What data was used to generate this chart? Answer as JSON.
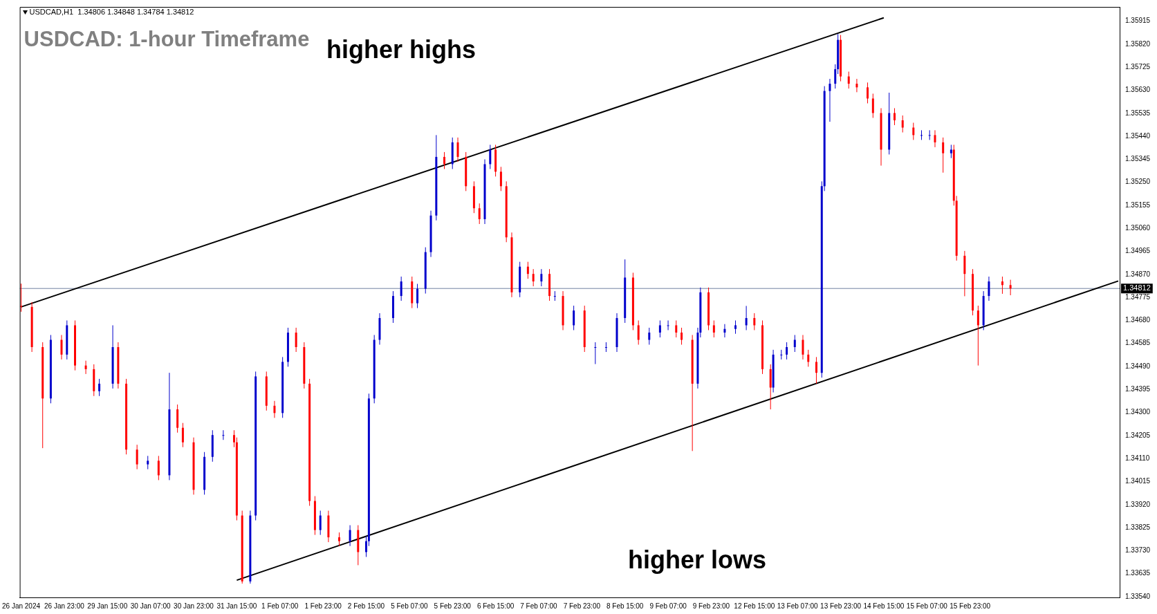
{
  "chart_data": {
    "type": "candlestick",
    "title": "USDCAD: 1-hour Timeframe",
    "annotations": [
      "USDCAD,H1  1.34806 1.34848 1.34784 1.34812",
      "higher highs",
      "higher lows"
    ],
    "categories": [
      "26 Jan 2024",
      null,
      null,
      null,
      null,
      null,
      null,
      null,
      null,
      null,
      null,
      null,
      null,
      null,
      null,
      null,
      "26 Jan 23:00",
      null,
      null,
      null,
      null,
      null,
      null,
      null,
      null,
      null,
      null,
      null,
      null,
      null,
      null,
      null,
      "29 Jan 15:00",
      null,
      null,
      null,
      null,
      null,
      null,
      null,
      null,
      null,
      null,
      null,
      null,
      null,
      null,
      null,
      "30 Jan 07:00",
      null,
      null,
      null,
      null,
      null,
      null,
      null,
      null,
      null,
      null,
      null,
      null,
      null,
      null,
      null,
      "30 Jan 23:00",
      null,
      null,
      null,
      null,
      null,
      null,
      null,
      null,
      null,
      null,
      null,
      null,
      null,
      null,
      null,
      "31 Jan 15:00",
      null,
      null,
      null,
      null,
      null,
      null,
      null,
      null,
      null,
      null,
      null,
      null,
      null,
      null,
      null,
      "1 Feb 07:00",
      null,
      null,
      null,
      null,
      null,
      null,
      null,
      null,
      null,
      null,
      null,
      null,
      null,
      null,
      null,
      "1 Feb 23:00",
      null,
      null,
      null,
      null,
      null,
      null,
      null,
      null,
      null,
      null,
      null,
      null,
      null,
      null,
      null,
      "2 Feb 15:00",
      null,
      null,
      null,
      null,
      null,
      null,
      null,
      null,
      null,
      null,
      null,
      null,
      null,
      null,
      null,
      "5 Feb 07:00",
      null,
      null,
      null,
      null,
      null,
      null,
      null,
      null,
      null,
      null,
      null,
      null,
      null,
      null,
      null,
      "5 Feb 23:00",
      null,
      null,
      null,
      null,
      null,
      null,
      null,
      null,
      null,
      null,
      null,
      null,
      null,
      null,
      null,
      "6 Feb 15:00",
      null,
      null,
      null,
      null,
      null,
      null,
      null,
      null,
      null,
      null,
      null,
      null,
      null,
      null,
      null,
      "7 Feb 07:00",
      null,
      null,
      null,
      null,
      null,
      null,
      null,
      null,
      null,
      null,
      null,
      null,
      null,
      null,
      null,
      "7 Feb 23:00",
      null,
      null,
      null,
      null,
      null,
      null,
      null,
      null,
      null,
      null,
      null,
      null,
      null,
      null,
      null,
      "8 Feb 15:00",
      null,
      null,
      null,
      null,
      null,
      null,
      null,
      null,
      null,
      null,
      null,
      null,
      null,
      null,
      null,
      "9 Feb 07:00",
      null,
      null,
      null,
      null,
      null,
      null,
      null,
      null,
      null,
      null,
      null,
      null,
      null,
      null,
      null,
      "9 Feb 23:00",
      null,
      null,
      null,
      null,
      null,
      null,
      null,
      null,
      null,
      null,
      null,
      null,
      null,
      null,
      null,
      "12 Feb 15:00",
      null,
      null,
      null,
      null,
      null,
      null,
      null,
      null,
      null,
      null,
      null,
      null,
      null,
      null,
      null,
      "13 Feb 07:00",
      null,
      null,
      null,
      null,
      null,
      null,
      null,
      null,
      null,
      null,
      null,
      null,
      null,
      null,
      null,
      "13 Feb 23:00",
      null,
      null,
      null,
      null,
      null,
      null,
      null,
      null,
      null,
      null,
      null,
      null,
      null,
      null,
      null,
      "14 Feb 15:00",
      null,
      null,
      null,
      null,
      null,
      null,
      null,
      null,
      null,
      null,
      null,
      null,
      null,
      null,
      null,
      "15 Feb 07:00",
      null,
      null,
      null,
      null,
      null,
      null,
      null,
      null,
      null,
      null,
      null,
      null,
      null,
      null,
      null,
      "15 Feb 23:00",
      null,
      null,
      null,
      null,
      null,
      null,
      null,
      null,
      null,
      null,
      null,
      null,
      null,
      null,
      null,
      null,
      null,
      null,
      null,
      null,
      null,
      null,
      null,
      null,
      null,
      null,
      null,
      null,
      null,
      null,
      null,
      null,
      null,
      null,
      null,
      null,
      null,
      null,
      null,
      null,
      null,
      null,
      null,
      null,
      null,
      null,
      null,
      null,
      null,
      null,
      null,
      null,
      null,
      null,
      null
    ],
    "ylim": [
      1.33537,
      1.35974
    ],
    "yticks": [
      {
        "value": 1.3354,
        "label": "1.33540"
      },
      1.33635,
      {
        "value": 1.3373,
        "label": "1.33730"
      },
      1.33825,
      {
        "value": 1.3392,
        "label": "1.33920"
      },
      1.34015,
      {
        "value": 1.3411,
        "label": "1.34110"
      },
      1.34205,
      {
        "value": 1.343,
        "label": "1.34300"
      },
      1.34395,
      {
        "value": 1.3449,
        "label": "1.34490"
      },
      1.34585,
      {
        "value": 1.3468,
        "label": "1.34680"
      },
      1.34775,
      {
        "value": 1.3487,
        "label": "1.34870"
      },
      1.34965,
      {
        "value": 1.3506,
        "label": "1.35060"
      },
      1.35155,
      {
        "value": 1.3525,
        "label": "1.35250"
      },
      1.35345,
      {
        "value": 1.3544,
        "label": "1.35440"
      },
      1.35535,
      {
        "value": 1.3563,
        "label": "1.35630"
      },
      1.35725,
      {
        "value": 1.3582,
        "label": "1.35820"
      },
      1.35915
    ],
    "grid": false,
    "legend": false,
    "ref_lines": [
      {
        "axis": "y",
        "value": 1.34812,
        "label": "1.34812",
        "color": "#7080a0"
      }
    ],
    "ohlc": [
      [
        1.3474,
        1.34832,
        1.34716,
        1.34736
      ],
      null,
      null,
      null,
      [
        1.34736,
        1.34756,
        1.3455,
        1.3457
      ],
      null,
      null,
      null,
      [
        1.3457,
        1.3459,
        1.34153,
        1.34358
      ],
      null,
      null,
      [
        1.34358,
        1.3462,
        1.34338,
        1.346
      ],
      null,
      null,
      null,
      [
        1.346,
        1.3462,
        1.34519,
        1.34539
      ],
      null,
      [
        1.34539,
        1.3468,
        1.34519,
        1.3466
      ],
      null,
      null,
      [
        1.3466,
        1.3468,
        1.34474,
        1.34494
      ],
      null,
      null,
      null,
      [
        1.34494,
        1.34514,
        1.34459,
        1.34479
      ],
      null,
      null,
      [
        1.34479,
        1.34499,
        1.34368,
        1.34388
      ],
      null,
      [
        1.34388,
        1.34439,
        1.34368,
        1.34419
      ],
      null,
      null,
      null,
      null,
      [
        1.34419,
        1.3466,
        1.34399,
        1.3457
      ],
      null,
      [
        1.3457,
        1.3459,
        1.34399,
        1.34419
      ],
      null,
      null,
      [
        1.34419,
        1.34439,
        1.34127,
        1.34147
      ],
      null,
      null,
      null,
      [
        1.34147,
        1.34167,
        1.34066,
        1.34086
      ],
      null,
      null,
      null,
      [
        1.34086,
        1.34121,
        1.34066,
        1.34101
      ],
      null,
      null,
      null,
      [
        1.34101,
        1.34121,
        1.34021,
        1.34041
      ],
      null,
      null,
      null,
      [
        1.34041,
        1.34464,
        1.34021,
        1.34313
      ],
      null,
      null,
      [
        1.34313,
        1.34333,
        1.34217,
        1.34237
      ],
      null,
      [
        1.34237,
        1.34257,
        1.34157,
        1.34177
      ],
      null,
      null,
      null,
      [
        1.34177,
        1.34197,
        1.33961,
        1.33981
      ],
      null,
      null,
      null,
      [
        1.33981,
        1.34137,
        1.33961,
        1.34117
      ],
      null,
      null,
      [
        1.34117,
        1.34227,
        1.34097,
        1.34207
      ],
      null,
      null,
      null,
      [
        1.34207,
        1.34227,
        1.34187,
        1.34207
      ],
      null,
      null,
      null,
      [
        1.34207,
        1.34227,
        1.34157,
        1.34177
      ],
      [
        1.34177,
        1.34197,
        1.33855,
        1.33875
      ],
      null,
      [
        1.33875,
        1.33895,
        1.33594,
        1.33603
      ],
      null,
      null,
      [
        1.33603,
        1.33895,
        1.33594,
        1.33875
      ],
      null,
      [
        1.33875,
        1.34469,
        1.33855,
        1.34449
      ],
      null,
      null,
      null,
      [
        1.34449,
        1.34469,
        1.34308,
        1.34328
      ],
      null,
      null,
      [
        1.34328,
        1.34348,
        1.34278,
        1.34298
      ],
      null,
      null,
      [
        1.34298,
        1.34529,
        1.34278,
        1.34509
      ],
      null,
      [
        1.34509,
        1.3465,
        1.34489,
        1.3463
      ],
      null,
      null,
      [
        1.3463,
        1.3465,
        1.3455,
        1.3457
      ],
      null,
      null,
      [
        1.3457,
        1.3459,
        1.34399,
        1.34419
      ],
      null,
      [
        1.34419,
        1.34439,
        1.33915,
        1.33935
      ],
      null,
      [
        1.33935,
        1.33955,
        1.33795,
        1.33815
      ],
      null,
      [
        1.33815,
        1.33895,
        1.33795,
        1.33875
      ],
      null,
      null,
      [
        1.33875,
        1.33895,
        1.33765,
        1.33785
      ],
      null,
      null,
      null,
      [
        1.33785,
        1.33805,
        1.33749,
        1.33769
      ],
      null,
      null,
      null,
      [
        1.33769,
        1.33835,
        1.33749,
        1.33815
      ],
      null,
      null,
      [
        1.33815,
        1.33835,
        1.3367,
        1.33724
      ],
      null,
      null,
      [
        1.33724,
        1.33789,
        1.33704,
        1.33769
      ],
      [
        1.33769,
        1.34378,
        1.33749,
        1.34358
      ],
      null,
      [
        1.34358,
        1.3462,
        1.34338,
        1.346
      ],
      null,
      [
        1.346,
        1.3471,
        1.3458,
        1.3469
      ],
      null,
      null,
      null,
      null,
      [
        1.3469,
        1.34801,
        1.3467,
        1.34781
      ],
      null,
      null,
      [
        1.34781,
        1.34861,
        1.34761,
        1.34841
      ],
      null,
      null,
      null,
      [
        1.34841,
        1.34861,
        1.34731,
        1.34751
      ],
      null,
      [
        1.34751,
        1.34831,
        1.34731,
        1.34811
      ],
      null,
      null,
      [
        1.34811,
        1.34982,
        1.34791,
        1.34962
      ],
      null,
      [
        1.34962,
        1.35133,
        1.34942,
        1.35113
      ],
      null,
      [
        1.35113,
        1.35445,
        1.35093,
        1.35355
      ],
      null,
      null,
      [
        1.35355,
        1.35375,
        1.35305,
        1.35325
      ],
      null,
      null,
      [
        1.35325,
        1.35435,
        1.35305,
        1.35415
      ],
      null,
      [
        1.35415,
        1.35435,
        1.35335,
        1.35355
      ],
      null,
      null,
      [
        1.35355,
        1.35375,
        1.35214,
        1.35234
      ],
      null,
      null,
      [
        1.35234,
        1.35254,
        1.35123,
        1.35143
      ],
      null,
      [
        1.35143,
        1.35163,
        1.35078,
        1.35098
      ],
      null,
      [
        1.35098,
        1.35345,
        1.35078,
        1.35325
      ],
      null,
      [
        1.35325,
        1.35405,
        1.35305,
        1.35385
      ],
      null,
      [
        1.35385,
        1.35405,
        1.35274,
        1.35294
      ],
      null,
      [
        1.35294,
        1.35314,
        1.35214,
        1.35234
      ],
      null,
      [
        1.35234,
        1.35254,
        1.35003,
        1.35023
      ],
      null,
      [
        1.35023,
        1.35043,
        1.34776,
        1.34796
      ],
      null,
      null,
      [
        1.34796,
        1.34922,
        1.34776,
        1.34902
      ],
      null,
      null,
      [
        1.34902,
        1.34922,
        1.34852,
        1.34872
      ],
      null,
      [
        1.34872,
        1.34892,
        1.34821,
        1.34841
      ],
      null,
      null,
      [
        1.34841,
        1.34892,
        1.34821,
        1.34872
      ],
      null,
      null,
      [
        1.34872,
        1.34892,
        1.34761,
        1.34781
      ],
      null,
      [
        1.34781,
        1.34801,
        1.34761,
        1.34781
      ],
      null,
      null,
      [
        1.34781,
        1.34801,
        1.3464,
        1.3466
      ],
      null,
      null,
      null,
      [
        1.3466,
        1.34741,
        1.3464,
        1.34721
      ],
      null,
      null,
      null,
      [
        1.34721,
        1.34741,
        1.3455,
        1.3457
      ],
      null,
      null,
      null,
      [
        1.3457,
        1.3459,
        1.345,
        1.3457
      ],
      null,
      null,
      null,
      [
        1.3457,
        1.3459,
        1.3455,
        1.3457
      ],
      null,
      null,
      null,
      [
        1.3457,
        1.3471,
        1.3455,
        1.3469
      ],
      null,
      null,
      [
        1.3469,
        1.34932,
        1.3467,
        1.34857
      ],
      null,
      null,
      [
        1.34857,
        1.34877,
        1.3464,
        1.3466
      ],
      null,
      [
        1.3466,
        1.3468,
        1.3458,
        1.346
      ],
      null,
      null,
      null,
      [
        1.346,
        1.3465,
        1.3458,
        1.3463
      ],
      null,
      null,
      null,
      [
        1.3463,
        1.3468,
        1.3461,
        1.3466
      ],
      null,
      null,
      [
        1.3466,
        1.3468,
        1.3464,
        1.3466
      ],
      null,
      null,
      [
        1.3466,
        1.3468,
        1.3461,
        1.3463
      ],
      null,
      [
        1.3463,
        1.3465,
        1.3458,
        1.346
      ],
      null,
      null,
      null,
      [
        1.346,
        1.3462,
        1.34141,
        1.34419
      ],
      null,
      [
        1.34419,
        1.3465,
        1.34399,
        1.3463
      ],
      [
        1.3463,
        1.34816,
        1.3461,
        1.34796
      ],
      null,
      null,
      [
        1.34796,
        1.34816,
        1.3464,
        1.3466
      ],
      null,
      [
        1.3466,
        1.3468,
        1.3461,
        1.3463
      ],
      null,
      null,
      null,
      [
        1.3463,
        1.34665,
        1.3461,
        1.34645
      ],
      null,
      null,
      null,
      [
        1.34645,
        1.3468,
        1.34625,
        1.3466
      ],
      null,
      null,
      null,
      [
        1.3466,
        1.3474,
        1.3464,
        1.3469
      ],
      null,
      null,
      [
        1.3469,
        1.3471,
        1.3464,
        1.3466
      ],
      null,
      null,
      [
        1.3466,
        1.3468,
        1.34459,
        1.34479
      ],
      null,
      null,
      [
        1.34479,
        1.34499,
        1.34313,
        1.34403
      ],
      [
        1.34403,
        1.34559,
        1.34383,
        1.34539
      ],
      null,
      null,
      [
        1.34539,
        1.34559,
        1.34519,
        1.34539
      ],
      null,
      [
        1.34539,
        1.3459,
        1.34519,
        1.3457
      ],
      null,
      null,
      [
        1.3457,
        1.3462,
        1.3455,
        1.346
      ],
      null,
      null,
      [
        1.346,
        1.3462,
        1.34519,
        1.34539
      ],
      null,
      [
        1.34539,
        1.34559,
        1.34489,
        1.34509
      ],
      null,
      null,
      [
        1.34509,
        1.34529,
        1.34419,
        1.34464
      ],
      null,
      [
        1.34464,
        1.35254,
        1.34444,
        1.35234
      ],
      [
        1.35234,
        1.35647,
        1.35214,
        1.35627
      ],
      null,
      [
        1.35627,
        1.35677,
        1.355,
        1.35657
      ],
      null,
      [
        1.35657,
        1.35737,
        1.35637,
        1.35717
      ],
      [
        1.35717,
        1.35862,
        1.35697,
        1.35838
      ],
      [
        1.35838,
        1.35858,
        1.35667,
        1.35687
      ],
      null,
      null,
      [
        1.35687,
        1.35707,
        1.35637,
        1.35657
      ],
      null,
      null,
      [
        1.35657,
        1.35677,
        1.35622,
        1.35642
      ],
      null,
      null,
      null,
      [
        1.35642,
        1.35662,
        1.35576,
        1.35596
      ],
      null,
      [
        1.35596,
        1.35616,
        1.35516,
        1.35536
      ],
      null,
      null,
      [
        1.35536,
        1.35556,
        1.35319,
        1.35385
      ],
      null,
      null,
      [
        1.35385,
        1.3562,
        1.35365,
        1.35536
      ],
      null,
      [
        1.35536,
        1.35556,
        1.35486,
        1.35506
      ],
      null,
      null,
      [
        1.35506,
        1.35526,
        1.35456,
        1.35476
      ],
      null,
      null,
      null,
      [
        1.35476,
        1.35496,
        1.35425,
        1.35445
      ],
      null,
      null,
      [
        1.35445,
        1.35465,
        1.35425,
        1.35445
      ],
      null,
      null,
      [
        1.35445,
        1.35465,
        1.35425,
        1.35445
      ],
      null,
      [
        1.35445,
        1.35465,
        1.35395,
        1.35415
      ],
      null,
      null,
      [
        1.35415,
        1.35435,
        1.3529,
        1.3537
      ],
      null,
      null,
      [
        1.3537,
        1.35405,
        1.3535,
        1.35385
      ],
      [
        1.35385,
        1.35405,
        1.35154,
        1.35174
      ],
      [
        1.35174,
        1.35194,
        1.34927,
        1.34947
      ],
      null,
      null,
      [
        1.34947,
        1.34967,
        1.3478,
        1.34872
      ],
      null,
      null,
      [
        1.34872,
        1.34892,
        1.34701,
        1.34721
      ],
      null,
      [
        1.34721,
        1.34741,
        1.34494,
        1.3466
      ],
      null,
      [
        1.3466,
        1.34801,
        1.3464,
        1.34781
      ],
      null,
      [
        1.34781,
        1.34861,
        1.34761,
        1.34841
      ],
      null,
      null,
      null,
      null,
      [
        1.34841,
        1.34861,
        1.3479,
        1.34826
      ],
      null,
      null,
      [
        1.34826,
        1.34848,
        1.34784,
        1.34812
      ],
      null,
      null,
      null,
      null,
      null,
      null,
      null,
      null,
      null,
      null,
      null,
      null,
      null,
      null,
      null,
      null,
      null,
      null,
      null,
      null,
      null,
      null,
      null,
      null,
      null,
      null,
      null,
      null,
      null,
      null,
      null,
      null,
      null,
      null,
      null,
      null,
      null,
      null,
      null,
      null
    ],
    "series": [
      {
        "type": "line",
        "color": "#000000",
        "values": [
          1.34736,
          null,
          null,
          null,
          null,
          null,
          null,
          null,
          null,
          null,
          null,
          null,
          null,
          null,
          null,
          null,
          null,
          null,
          null,
          null,
          null,
          null,
          null,
          null,
          null,
          null,
          null,
          null,
          null,
          null,
          null,
          null,
          null,
          null,
          null,
          null,
          null,
          null,
          null,
          null,
          null,
          null,
          null,
          null,
          null,
          null,
          null,
          null,
          null,
          null,
          null,
          null,
          null,
          null,
          null,
          null,
          null,
          null,
          null,
          null,
          null,
          null,
          null,
          null,
          null,
          null,
          null,
          null,
          null,
          null,
          null,
          null,
          null,
          null,
          null,
          null,
          null,
          null,
          null,
          null,
          null,
          null,
          null,
          null,
          null,
          null,
          null,
          null,
          null,
          null,
          null,
          null,
          null,
          null,
          null,
          null,
          null,
          null,
          null,
          null,
          null,
          null,
          null,
          null,
          null,
          null,
          null,
          null,
          null,
          null,
          null,
          null,
          null,
          null,
          null,
          null,
          null,
          null,
          null,
          null,
          null,
          null,
          null,
          null,
          null,
          null,
          null,
          null,
          null,
          null,
          null,
          null,
          null,
          null,
          null,
          null,
          null,
          null,
          null,
          null,
          null,
          null,
          null,
          null,
          null,
          null,
          null,
          null,
          null,
          null,
          null,
          null,
          null,
          null,
          null,
          null,
          null,
          null,
          null,
          null,
          null,
          null,
          null,
          null,
          null,
          null,
          null,
          null,
          null,
          null,
          null,
          null,
          null,
          null,
          null,
          null,
          null,
          null,
          null,
          null,
          null,
          null,
          null,
          null,
          null,
          null,
          null,
          null,
          null,
          null,
          null,
          null,
          null,
          null,
          null,
          null,
          null,
          null,
          null,
          null,
          null,
          null,
          null,
          null,
          null,
          null,
          null,
          null,
          null,
          null,
          null,
          null,
          null,
          null,
          null,
          null,
          null,
          null,
          null,
          null,
          null,
          null,
          null,
          null,
          null,
          null,
          null,
          null,
          null,
          null,
          null,
          null,
          null,
          null,
          null,
          null,
          null,
          null,
          null,
          null,
          null,
          null,
          null,
          null,
          null,
          null,
          null,
          null,
          null,
          null,
          null,
          null,
          null,
          null,
          null,
          null,
          null,
          null,
          null,
          null,
          null,
          null,
          null,
          null,
          null,
          null,
          null,
          null,
          null,
          null,
          null,
          null,
          null,
          null,
          null,
          null,
          null,
          null,
          null,
          null,
          null,
          null,
          null,
          null,
          null,
          null,
          null,
          null,
          null,
          null,
          null,
          null,
          null,
          null,
          null,
          null,
          null,
          null,
          null,
          null,
          null,
          null,
          null,
          null,
          null,
          null,
          null,
          null,
          null,
          null,
          null,
          null,
          null,
          null,
          null,
          null,
          null,
          null,
          null,
          null,
          1.35929,
          null,
          null,
          null,
          null,
          null,
          null,
          null,
          null,
          null,
          null,
          null,
          null,
          null,
          null,
          null,
          null,
          null,
          null,
          null,
          null,
          null,
          null,
          null,
          null,
          null,
          null,
          null,
          null,
          null,
          null,
          null,
          null,
          null,
          null,
          null,
          null,
          null,
          null,
          null,
          null,
          null,
          null,
          null,
          null,
          null,
          null,
          null,
          null,
          null,
          null,
          null,
          null,
          null,
          null,
          null,
          null,
          null,
          null,
          null,
          null,
          null,
          null,
          null,
          null,
          null,
          null,
          null,
          null,
          null,
          null,
          null,
          null,
          null,
          null,
          null,
          null,
          null,
          null,
          null,
          null,
          null,
          null,
          null,
          null,
          null,
          null,
          null
        ]
      },
      {
        "type": "line",
        "color": "#000000",
        "values": [
          null,
          null,
          null,
          null,
          null,
          null,
          null,
          null,
          null,
          null,
          null,
          null,
          null,
          null,
          null,
          null,
          null,
          null,
          null,
          null,
          null,
          null,
          null,
          null,
          null,
          null,
          null,
          null,
          null,
          null,
          null,
          null,
          null,
          null,
          null,
          null,
          null,
          null,
          null,
          null,
          null,
          null,
          null,
          null,
          null,
          null,
          null,
          null,
          null,
          null,
          null,
          null,
          null,
          null,
          null,
          null,
          null,
          null,
          null,
          null,
          null,
          null,
          null,
          null,
          null,
          null,
          null,
          null,
          null,
          null,
          null,
          null,
          null,
          null,
          null,
          null,
          null,
          null,
          null,
          null,
          1.33608,
          null,
          null,
          null,
          null,
          null,
          null,
          null,
          null,
          null,
          null,
          null,
          null,
          null,
          null,
          null,
          null,
          null,
          null,
          null,
          null,
          null,
          null,
          null,
          null,
          null,
          null,
          null,
          null,
          null,
          null,
          null,
          null,
          null,
          null,
          null,
          null,
          null,
          null,
          null,
          null,
          null,
          null,
          null,
          null,
          null,
          null,
          null,
          null,
          null,
          null,
          null,
          null,
          null,
          null,
          null,
          null,
          null,
          null,
          null,
          null,
          null,
          null,
          null,
          null,
          null,
          null,
          null,
          null,
          null,
          null,
          null,
          null,
          null,
          null,
          null,
          null,
          null,
          null,
          null,
          null,
          null,
          null,
          null,
          null,
          null,
          null,
          null,
          null,
          null,
          null,
          null,
          null,
          null,
          null,
          null,
          null,
          null,
          null,
          null,
          null,
          null,
          null,
          null,
          null,
          null,
          null,
          null,
          null,
          null,
          null,
          null,
          null,
          null,
          null,
          null,
          null,
          null,
          null,
          null,
          null,
          null,
          null,
          null,
          null,
          null,
          null,
          null,
          null,
          null,
          null,
          null,
          null,
          null,
          null,
          null,
          null,
          null,
          null,
          null,
          null,
          null,
          null,
          null,
          null,
          null,
          null,
          null,
          null,
          null,
          null,
          null,
          null,
          null,
          null,
          null,
          null,
          null,
          null,
          null,
          null,
          null,
          null,
          null,
          null,
          null,
          null,
          null,
          null,
          null,
          null,
          null,
          null,
          null,
          null,
          null,
          null,
          null,
          null,
          null,
          null,
          null,
          null,
          null,
          null,
          null,
          null,
          null,
          null,
          null,
          null,
          null,
          null,
          null,
          null,
          null,
          null,
          null,
          null,
          null,
          null,
          null,
          null,
          null,
          null,
          null,
          null,
          null,
          null,
          null,
          null,
          null,
          null,
          null,
          null,
          null,
          null,
          null,
          null,
          null,
          null,
          null,
          null,
          null,
          null,
          null,
          null,
          null,
          null,
          null,
          null,
          null,
          null,
          null,
          null,
          null,
          null,
          null,
          null,
          null,
          null,
          null,
          null,
          null,
          null,
          null,
          null,
          null,
          null,
          null,
          null,
          null,
          null,
          null,
          null,
          null,
          null,
          null,
          null,
          null,
          null,
          null,
          null,
          null,
          null,
          null,
          null,
          null,
          null,
          null,
          null,
          null,
          null,
          null,
          null,
          null,
          null,
          null,
          null,
          null,
          null,
          null,
          null,
          null,
          null,
          null,
          null,
          null,
          null,
          null,
          null,
          null,
          null,
          null,
          null,
          null,
          null,
          null,
          null,
          null,
          null,
          null,
          null,
          null,
          null,
          null,
          null,
          null,
          null,
          null,
          null,
          null,
          null,
          null,
          null,
          null,
          null,
          null,
          null,
          null,
          null,
          null,
          null,
          null,
          null,
          null,
          null,
          1.34843
        ]
      }
    ]
  }
}
